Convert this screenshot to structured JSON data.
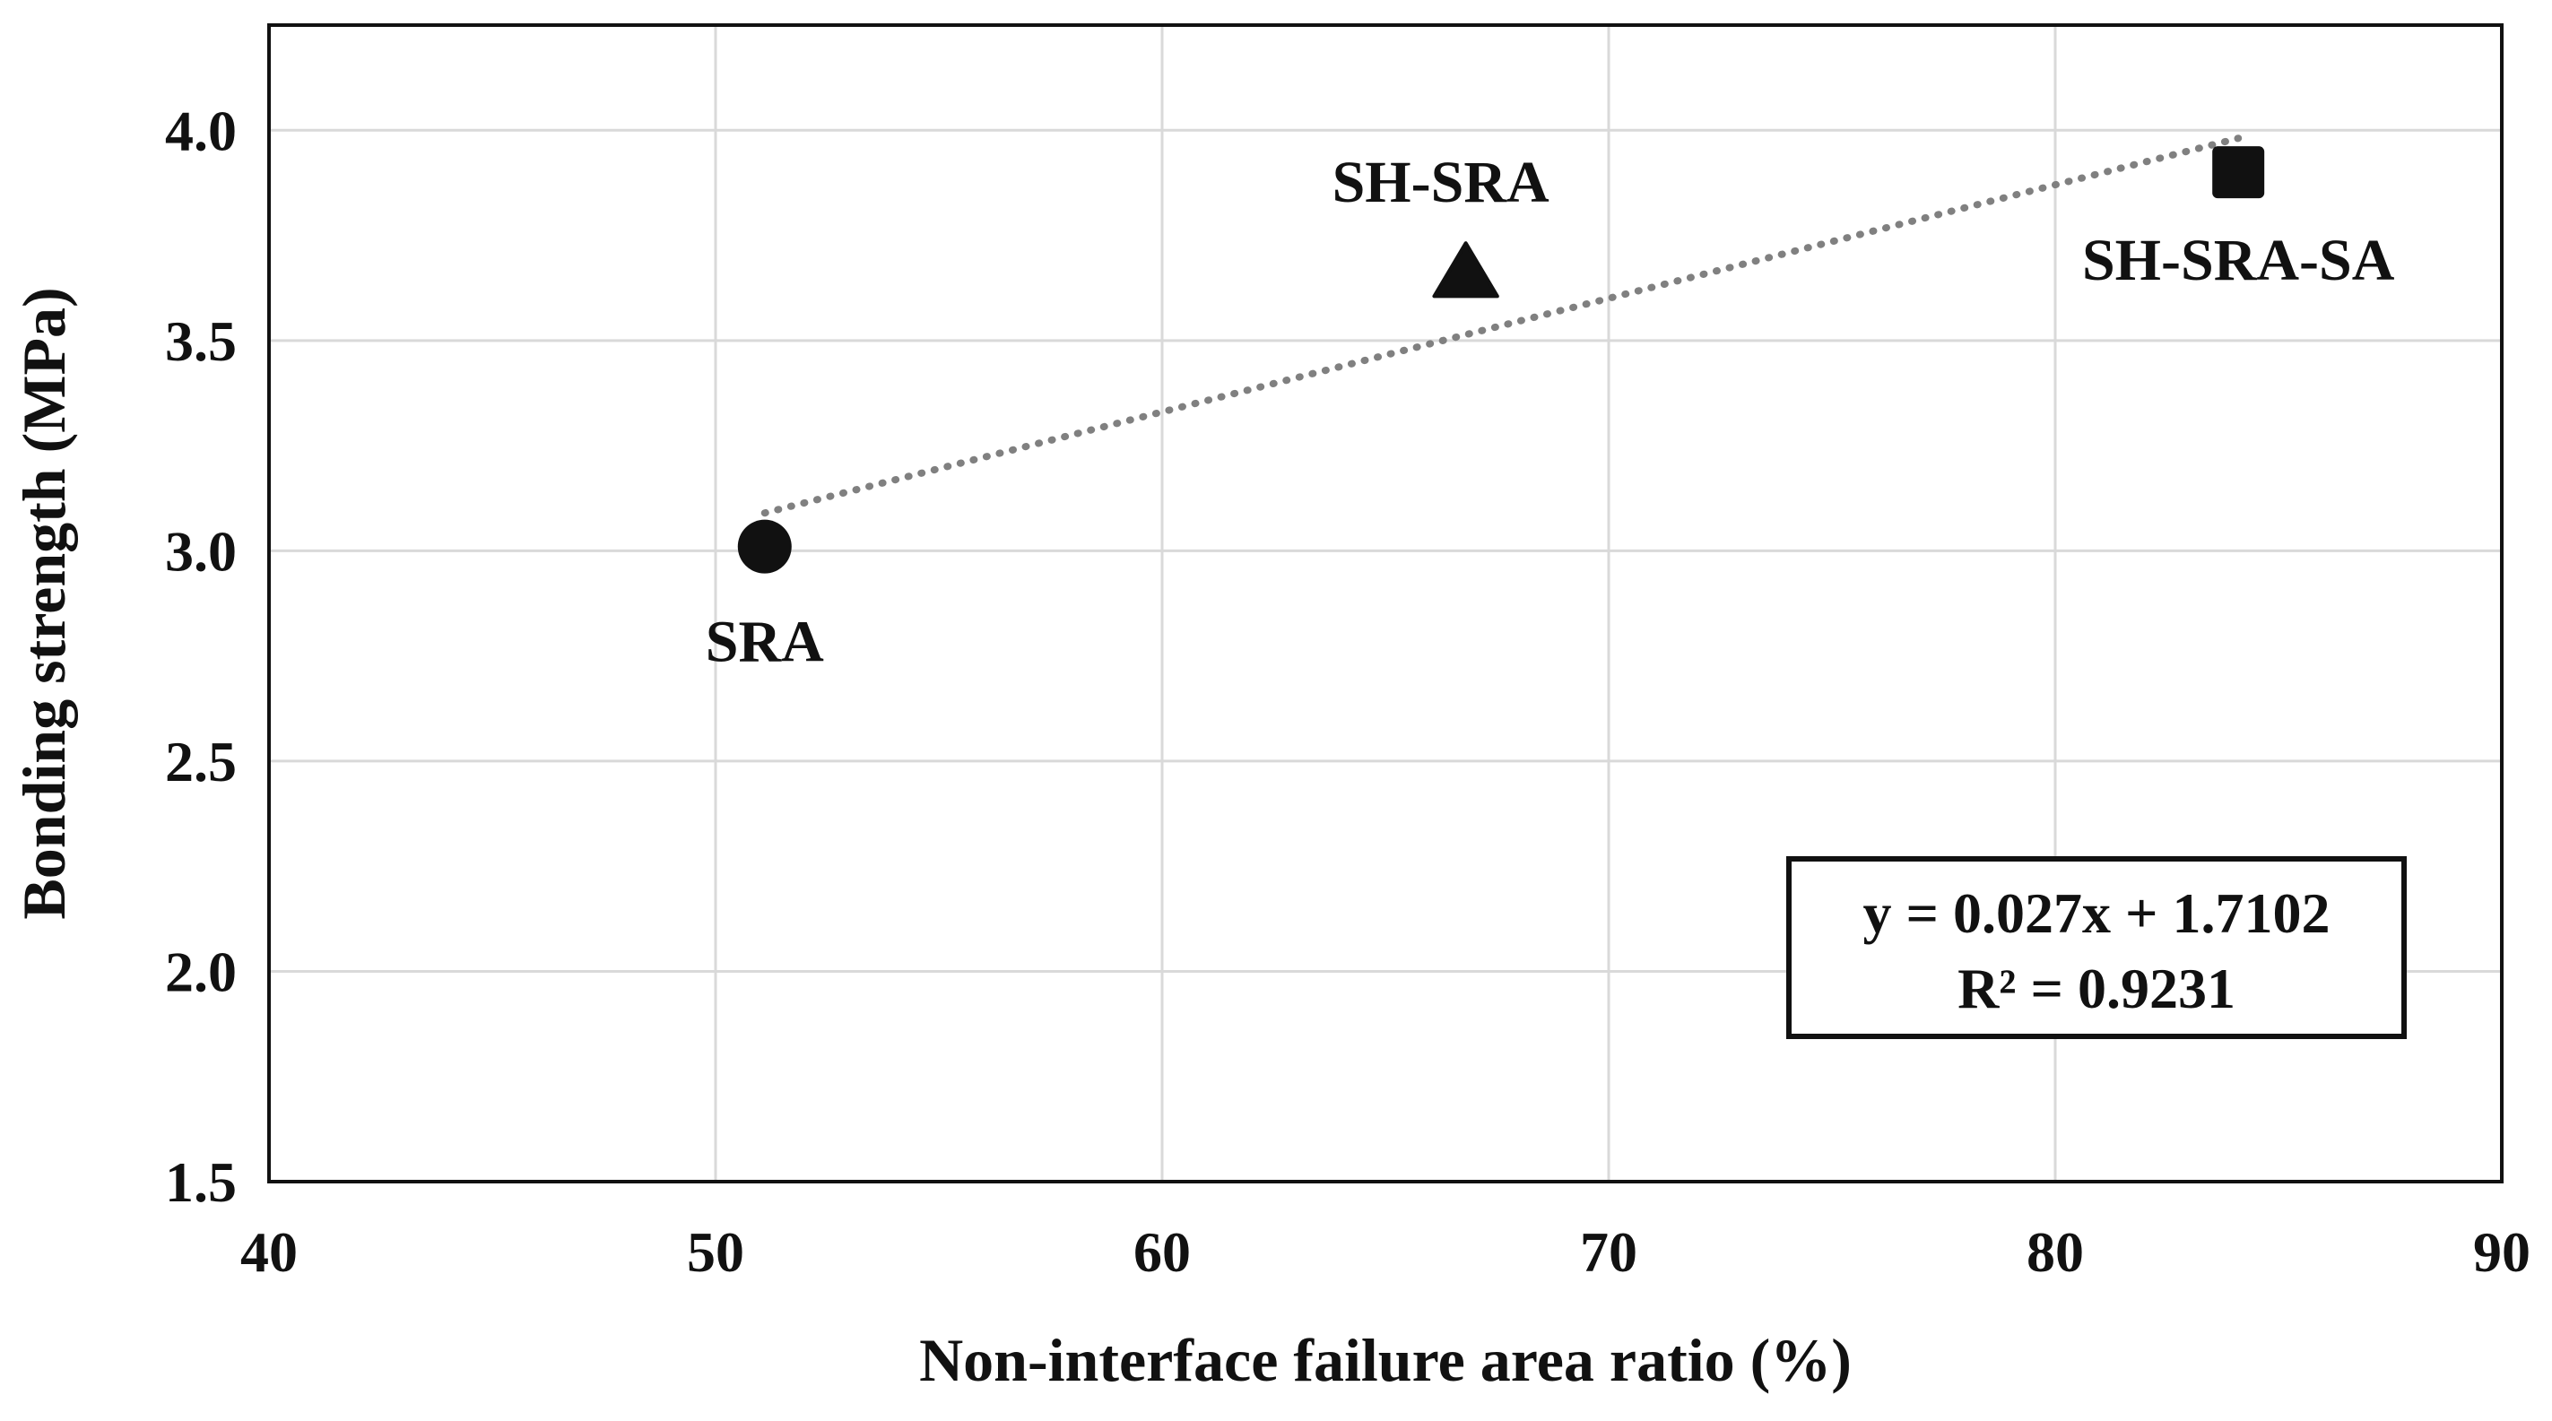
{
  "chart_data": {
    "type": "scatter",
    "title": "",
    "xlabel": "Non-interface failure area ratio  (%)",
    "ylabel": "Bonding strength (MPa)",
    "xlim": [
      40,
      90
    ],
    "ylim": [
      1.5,
      4.25
    ],
    "xticks": [
      40,
      50,
      60,
      70,
      80,
      90
    ],
    "yticks": [
      1.5,
      2.0,
      2.5,
      3.0,
      3.5,
      4.0
    ],
    "xtick_labels": [
      "40",
      "50",
      "60",
      "70",
      "80",
      "90"
    ],
    "ytick_labels": [
      "1.5",
      "2.0",
      "2.5",
      "3.0",
      "3.5",
      "4.0"
    ],
    "grid": true,
    "series": [
      {
        "name": "SRA",
        "marker": "circle",
        "x": 51.1,
        "y": 3.01,
        "label": "SRA"
      },
      {
        "name": "SH-SRA",
        "marker": "triangle",
        "x": 66.8,
        "y": 3.66,
        "label": "SH-SRA"
      },
      {
        "name": "SH-SRA-SA",
        "marker": "square",
        "x": 84.1,
        "y": 3.9,
        "label": "SH-SRA-SA"
      }
    ],
    "trendline": {
      "type": "linear",
      "slope": 0.027,
      "intercept": 1.7102,
      "x_range": [
        51.1,
        84.1
      ],
      "style": "dotted",
      "color": "#808080",
      "equation": "y = 0.027x + 1.7102",
      "r_squared": "R² = 0.9231"
    },
    "colors": {
      "marker": "#111111",
      "grid": "#d9d9d9",
      "axes": "#111111"
    }
  }
}
